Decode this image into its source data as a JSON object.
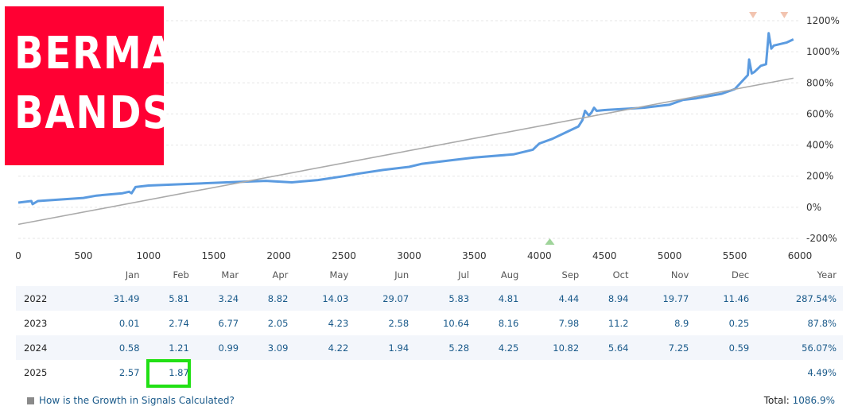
{
  "logo": {
    "line1": "BERMA",
    "line2": "BANDS"
  },
  "chart_data": {
    "type": "line",
    "x_ticks": [
      0,
      500,
      1000,
      1500,
      2000,
      2500,
      3000,
      3500,
      4000,
      4500,
      5000,
      5500,
      6000
    ],
    "y_ticks": [
      -200,
      0,
      200,
      400,
      600,
      800,
      1000,
      1200
    ],
    "y_tick_labels": [
      "-200%",
      "0%",
      "200%",
      "400%",
      "600%",
      "800%",
      "1000%",
      "1200%"
    ],
    "xlim": [
      0,
      6000
    ],
    "ylim": [
      -220,
      1260
    ],
    "series": [
      {
        "color": "#5b9be0",
        "x": [
          0,
          100,
          110,
          150,
          500,
          600,
          800,
          850,
          870,
          900,
          1000,
          1300,
          1600,
          1900,
          2100,
          2300,
          2500,
          2600,
          2800,
          3000,
          3100,
          3300,
          3500,
          3800,
          3950,
          4000,
          4100,
          4200,
          4300,
          4330,
          4350,
          4380,
          4400,
          4420,
          4440,
          4500,
          4800,
          5000,
          5100,
          5200,
          5300,
          5400,
          5500,
          5600,
          5610,
          5630,
          5650,
          5700,
          5740,
          5760,
          5780,
          5800,
          5900,
          5950
        ],
        "y": [
          30,
          40,
          20,
          40,
          60,
          75,
          90,
          100,
          90,
          130,
          140,
          150,
          160,
          170,
          160,
          175,
          200,
          215,
          240,
          260,
          280,
          300,
          320,
          340,
          370,
          410,
          440,
          480,
          520,
          560,
          620,
          590,
          610,
          640,
          620,
          625,
          640,
          660,
          690,
          700,
          715,
          730,
          760,
          850,
          950,
          860,
          870,
          910,
          920,
          1120,
          1020,
          1040,
          1060,
          1080
        ]
      },
      {
        "color": "#aaaaaa",
        "x": [
          0,
          5950
        ],
        "y": [
          -110,
          830
        ]
      }
    ],
    "markers_top": [
      5640,
      5880
    ],
    "marker_bottom": 4080,
    "marker_top_color": "#f2c4b0",
    "marker_bottom_color": "#9fd49a"
  },
  "table": {
    "headers": [
      "",
      "Jan",
      "Feb",
      "Mar",
      "Apr",
      "May",
      "Jun",
      "Jul",
      "Aug",
      "Sep",
      "Oct",
      "Nov",
      "Dec",
      "Year"
    ],
    "rows": [
      [
        "2022",
        "31.49",
        "5.81",
        "3.24",
        "8.82",
        "14.03",
        "29.07",
        "5.83",
        "4.81",
        "4.44",
        "8.94",
        "19.77",
        "11.46",
        "287.54%"
      ],
      [
        "2023",
        "0.01",
        "2.74",
        "6.77",
        "2.05",
        "4.23",
        "2.58",
        "10.64",
        "8.16",
        "7.98",
        "11.2",
        "8.9",
        "0.25",
        "87.8%"
      ],
      [
        "2024",
        "0.58",
        "1.21",
        "0.99",
        "3.09",
        "4.22",
        "1.94",
        "5.28",
        "4.25",
        "10.82",
        "5.64",
        "7.25",
        "0.59",
        "56.07%"
      ],
      [
        "2025",
        "2.57",
        "1.87",
        "",
        "",
        "",
        "",
        "",
        "",
        "",
        "",
        "",
        "",
        "4.49%"
      ]
    ],
    "highlight_color": "#22e015"
  },
  "footer": {
    "link": "How is the Growth in Signals Calculated?",
    "total_label": "Total:",
    "total_value": "1086.9%"
  }
}
